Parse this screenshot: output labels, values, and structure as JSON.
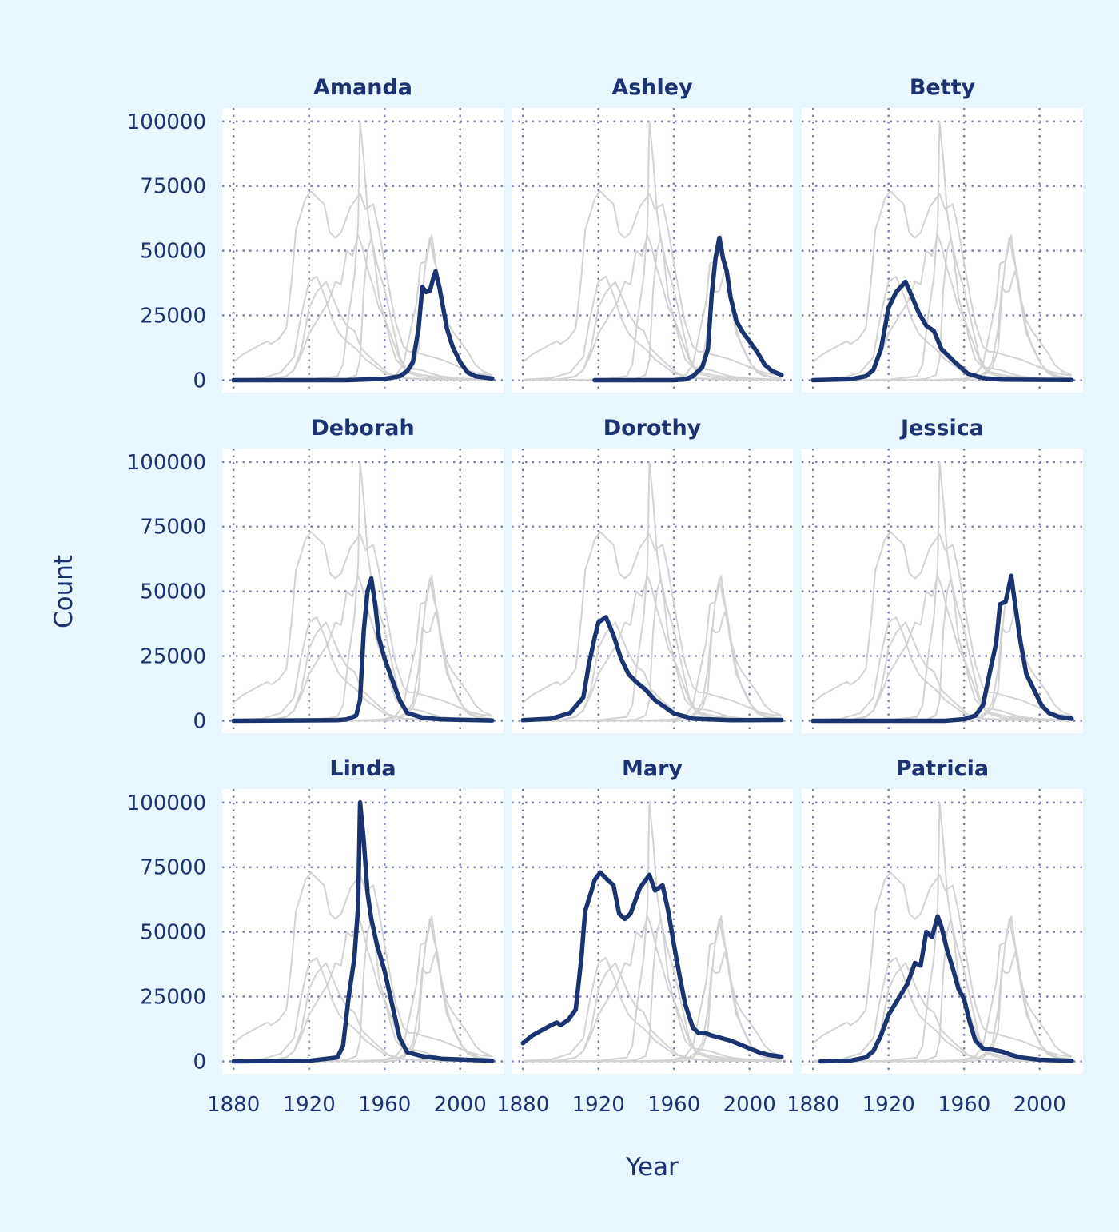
{
  "chart_data": {
    "type": "line",
    "layout": "facet-grid 3x3, all series drawn grey in every panel, focal series highlighted",
    "xlabel": "Year",
    "ylabel": "Count",
    "xlim": [
      1880,
      2017
    ],
    "ylim": [
      0,
      100000
    ],
    "x_ticks": [
      "1880",
      "1920",
      "1960",
      "2000"
    ],
    "y_ticks": [
      "0",
      "25000",
      "50000",
      "75000",
      "100000"
    ],
    "grid": true,
    "colors": {
      "background": "#e8f6fe",
      "panel": "#ffffff",
      "highlight": "#1b3370",
      "context": "#d3d3d3",
      "grid": "#7b82a8",
      "text": "#1b3370"
    },
    "series": [
      {
        "name": "Amanda",
        "points": [
          [
            1880,
            0
          ],
          [
            1940,
            0
          ],
          [
            1960,
            500
          ],
          [
            1968,
            1500
          ],
          [
            1972,
            3500
          ],
          [
            1975,
            7000
          ],
          [
            1978,
            20000
          ],
          [
            1980,
            36000
          ],
          [
            1982,
            34000
          ],
          [
            1984,
            34500
          ],
          [
            1986,
            40000
          ],
          [
            1987,
            42000
          ],
          [
            1989,
            36000
          ],
          [
            1991,
            28000
          ],
          [
            1993,
            20000
          ],
          [
            1996,
            13000
          ],
          [
            2000,
            7000
          ],
          [
            2004,
            3000
          ],
          [
            2008,
            1500
          ],
          [
            2017,
            600
          ]
        ]
      },
      {
        "name": "Ashley",
        "points": [
          [
            1918,
            0
          ],
          [
            1960,
            0
          ],
          [
            1966,
            300
          ],
          [
            1970,
            1500
          ],
          [
            1975,
            5000
          ],
          [
            1978,
            12000
          ],
          [
            1980,
            33000
          ],
          [
            1982,
            47000
          ],
          [
            1984,
            55000
          ],
          [
            1986,
            47000
          ],
          [
            1988,
            42000
          ],
          [
            1990,
            32000
          ],
          [
            1993,
            23000
          ],
          [
            1996,
            19000
          ],
          [
            2000,
            15000
          ],
          [
            2004,
            11000
          ],
          [
            2008,
            6000
          ],
          [
            2012,
            3500
          ],
          [
            2017,
            2000
          ]
        ]
      },
      {
        "name": "Betty",
        "points": [
          [
            1880,
            0
          ],
          [
            1900,
            400
          ],
          [
            1908,
            1500
          ],
          [
            1912,
            4000
          ],
          [
            1916,
            12000
          ],
          [
            1920,
            28000
          ],
          [
            1924,
            34000
          ],
          [
            1929,
            38000
          ],
          [
            1932,
            33000
          ],
          [
            1936,
            26000
          ],
          [
            1940,
            21000
          ],
          [
            1944,
            19000
          ],
          [
            1948,
            12000
          ],
          [
            1955,
            7000
          ],
          [
            1962,
            2500
          ],
          [
            1970,
            800
          ],
          [
            1980,
            200
          ],
          [
            2017,
            50
          ]
        ]
      },
      {
        "name": "Deborah",
        "points": [
          [
            1880,
            0
          ],
          [
            1935,
            200
          ],
          [
            1940,
            500
          ],
          [
            1945,
            2000
          ],
          [
            1947,
            8000
          ],
          [
            1949,
            35000
          ],
          [
            1951,
            50000
          ],
          [
            1953,
            55000
          ],
          [
            1955,
            45000
          ],
          [
            1957,
            32000
          ],
          [
            1960,
            24000
          ],
          [
            1964,
            16000
          ],
          [
            1968,
            8000
          ],
          [
            1972,
            3000
          ],
          [
            1980,
            1200
          ],
          [
            1990,
            500
          ],
          [
            2017,
            100
          ]
        ]
      },
      {
        "name": "Dorothy",
        "points": [
          [
            1880,
            200
          ],
          [
            1895,
            800
          ],
          [
            1905,
            3000
          ],
          [
            1912,
            9000
          ],
          [
            1915,
            22000
          ],
          [
            1918,
            32000
          ],
          [
            1920,
            38000
          ],
          [
            1924,
            40000
          ],
          [
            1928,
            33000
          ],
          [
            1932,
            24000
          ],
          [
            1936,
            18000
          ],
          [
            1940,
            15000
          ],
          [
            1945,
            12000
          ],
          [
            1950,
            8000
          ],
          [
            1960,
            2800
          ],
          [
            1970,
            800
          ],
          [
            1990,
            200
          ],
          [
            2017,
            300
          ]
        ]
      },
      {
        "name": "Jessica",
        "points": [
          [
            1880,
            0
          ],
          [
            1950,
            0
          ],
          [
            1960,
            600
          ],
          [
            1966,
            2000
          ],
          [
            1970,
            6000
          ],
          [
            1974,
            20000
          ],
          [
            1977,
            30000
          ],
          [
            1979,
            45000
          ],
          [
            1982,
            46000
          ],
          [
            1985,
            56000
          ],
          [
            1987,
            45000
          ],
          [
            1990,
            30000
          ],
          [
            1993,
            18000
          ],
          [
            1997,
            12000
          ],
          [
            2001,
            6000
          ],
          [
            2005,
            3000
          ],
          [
            2010,
            1500
          ],
          [
            2017,
            800
          ]
        ]
      },
      {
        "name": "Linda",
        "points": [
          [
            1880,
            0
          ],
          [
            1920,
            200
          ],
          [
            1935,
            1500
          ],
          [
            1938,
            6000
          ],
          [
            1941,
            25000
          ],
          [
            1944,
            40000
          ],
          [
            1946,
            60000
          ],
          [
            1947,
            100000
          ],
          [
            1949,
            85000
          ],
          [
            1951,
            65000
          ],
          [
            1953,
            55000
          ],
          [
            1956,
            45000
          ],
          [
            1960,
            35000
          ],
          [
            1964,
            22000
          ],
          [
            1968,
            9000
          ],
          [
            1972,
            3500
          ],
          [
            1980,
            2000
          ],
          [
            1990,
            1000
          ],
          [
            2017,
            200
          ]
        ]
      },
      {
        "name": "Mary",
        "points": [
          [
            1880,
            7000
          ],
          [
            1885,
            10000
          ],
          [
            1890,
            12000
          ],
          [
            1895,
            14000
          ],
          [
            1898,
            15000
          ],
          [
            1900,
            14000
          ],
          [
            1904,
            16000
          ],
          [
            1908,
            20000
          ],
          [
            1911,
            40000
          ],
          [
            1913,
            58000
          ],
          [
            1916,
            65000
          ],
          [
            1918,
            70000
          ],
          [
            1921,
            73000
          ],
          [
            1925,
            70000
          ],
          [
            1928,
            68000
          ],
          [
            1931,
            57000
          ],
          [
            1934,
            55000
          ],
          [
            1937,
            57000
          ],
          [
            1940,
            63000
          ],
          [
            1942,
            67000
          ],
          [
            1947,
            72000
          ],
          [
            1950,
            66000
          ],
          [
            1954,
            68000
          ],
          [
            1957,
            58000
          ],
          [
            1960,
            45000
          ],
          [
            1963,
            33000
          ],
          [
            1966,
            22000
          ],
          [
            1970,
            13000
          ],
          [
            1973,
            11000
          ],
          [
            1976,
            11000
          ],
          [
            1980,
            10000
          ],
          [
            1985,
            9000
          ],
          [
            1990,
            8000
          ],
          [
            1995,
            6500
          ],
          [
            2000,
            5000
          ],
          [
            2005,
            3500
          ],
          [
            2010,
            2500
          ],
          [
            2017,
            1800
          ]
        ]
      },
      {
        "name": "Patricia",
        "points": [
          [
            1884,
            0
          ],
          [
            1900,
            300
          ],
          [
            1908,
            1500
          ],
          [
            1912,
            4000
          ],
          [
            1916,
            10000
          ],
          [
            1920,
            18000
          ],
          [
            1925,
            24000
          ],
          [
            1930,
            30000
          ],
          [
            1934,
            38000
          ],
          [
            1937,
            37000
          ],
          [
            1940,
            50000
          ],
          [
            1943,
            48000
          ],
          [
            1946,
            56000
          ],
          [
            1948,
            52000
          ],
          [
            1951,
            43000
          ],
          [
            1954,
            36000
          ],
          [
            1957,
            28000
          ],
          [
            1960,
            24000
          ],
          [
            1963,
            15000
          ],
          [
            1966,
            8000
          ],
          [
            1970,
            5000
          ],
          [
            1975,
            4500
          ],
          [
            1980,
            3800
          ],
          [
            1985,
            2500
          ],
          [
            1990,
            1500
          ],
          [
            2000,
            600
          ],
          [
            2017,
            200
          ]
        ]
      }
    ]
  }
}
